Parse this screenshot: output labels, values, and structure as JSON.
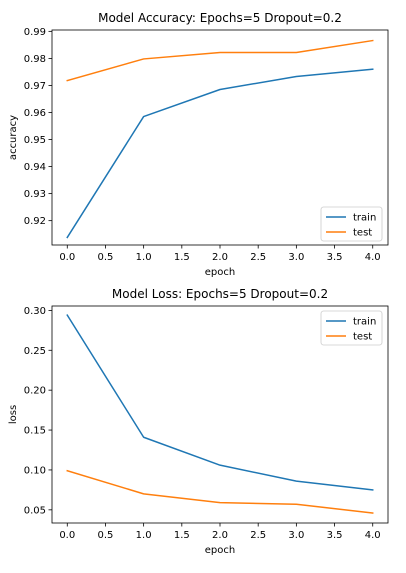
{
  "chart_data": [
    {
      "type": "line",
      "title": "Model Accuracy: Epochs=5 Dropout=0.2",
      "xlabel": "epoch",
      "ylabel": "accuracy",
      "x": [
        0,
        1,
        2,
        3,
        4
      ],
      "xlim": [
        -0.2,
        4.2
      ],
      "ylim": [
        0.911,
        0.9905
      ],
      "xticks": [
        0.0,
        0.5,
        1.0,
        1.5,
        2.0,
        2.5,
        3.0,
        3.5,
        4.0
      ],
      "xtick_labels": [
        "0.0",
        "0.5",
        "1.0",
        "1.5",
        "2.0",
        "2.5",
        "3.0",
        "3.5",
        "4.0"
      ],
      "yticks": [
        0.92,
        0.93,
        0.94,
        0.95,
        0.96,
        0.97,
        0.98,
        0.99
      ],
      "ytick_labels": [
        "0.92",
        "0.93",
        "0.94",
        "0.95",
        "0.96",
        "0.97",
        "0.98",
        "0.99"
      ],
      "series": [
        {
          "name": "train",
          "values": [
            0.9138,
            0.9585,
            0.9685,
            0.9733,
            0.976
          ],
          "color": "#1f77b4"
        },
        {
          "name": "test",
          "values": [
            0.9718,
            0.9798,
            0.9822,
            0.9822,
            0.9866
          ],
          "color": "#ff7f0e"
        }
      ],
      "grid": false,
      "legend": "lower right"
    },
    {
      "type": "line",
      "title": "Model Loss: Epochs=5 Dropout=0.2",
      "xlabel": "epoch",
      "ylabel": "loss",
      "x": [
        0,
        1,
        2,
        3,
        4
      ],
      "xlim": [
        -0.2,
        4.2
      ],
      "ylim": [
        0.0335,
        0.3055
      ],
      "xticks": [
        0.0,
        0.5,
        1.0,
        1.5,
        2.0,
        2.5,
        3.0,
        3.5,
        4.0
      ],
      "xtick_labels": [
        "0.0",
        "0.5",
        "1.0",
        "1.5",
        "2.0",
        "2.5",
        "3.0",
        "3.5",
        "4.0"
      ],
      "yticks": [
        0.05,
        0.1,
        0.15,
        0.2,
        0.25,
        0.3
      ],
      "ytick_labels": [
        "0.05",
        "0.10",
        "0.15",
        "0.20",
        "0.25",
        "0.30"
      ],
      "series": [
        {
          "name": "train",
          "values": [
            0.294,
            0.141,
            0.106,
            0.086,
            0.075
          ],
          "color": "#1f77b4"
        },
        {
          "name": "test",
          "values": [
            0.099,
            0.07,
            0.059,
            0.057,
            0.046
          ],
          "color": "#ff7f0e"
        }
      ],
      "grid": false,
      "legend": "upper right"
    }
  ]
}
